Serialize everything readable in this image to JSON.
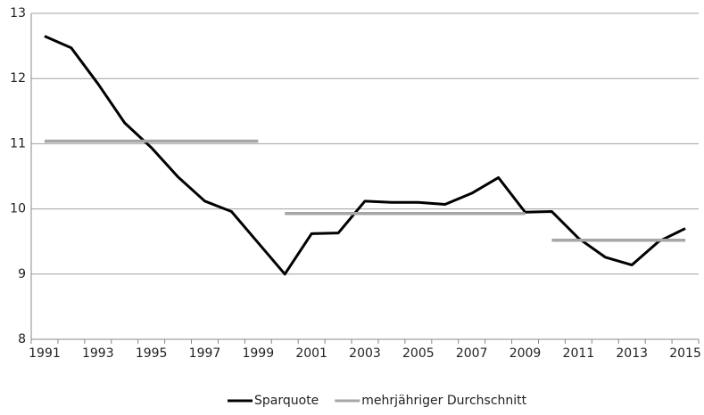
{
  "chart_data": {
    "type": "line",
    "categories": [
      "1991",
      null,
      "1993",
      null,
      "1995",
      null,
      "1997",
      null,
      "1999",
      null,
      "2001",
      null,
      "2003",
      null,
      "2005",
      null,
      "2007",
      null,
      "2009",
      null,
      "2011",
      null,
      "2013",
      null,
      "2015"
    ],
    "series": [
      {
        "name": "Sparquote",
        "color": "#000000",
        "values": [
          12.65,
          12.47,
          11.92,
          11.32,
          10.94,
          10.49,
          10.12,
          9.96,
          9.48,
          9.0,
          9.62,
          9.63,
          10.12,
          10.1,
          10.1,
          10.07,
          10.24,
          10.48,
          9.95,
          9.96,
          9.55,
          9.26,
          9.14,
          9.5,
          9.7
        ]
      },
      {
        "name": "mehrjähriger Durchschnitt",
        "color": "#a6a6a6",
        "values": [
          11.04,
          11.04,
          11.04,
          11.04,
          11.04,
          11.04,
          11.04,
          11.04,
          11.04,
          9.93,
          9.93,
          9.93,
          9.93,
          9.93,
          9.93,
          9.93,
          9.93,
          9.93,
          9.93,
          9.52,
          9.52,
          9.52,
          9.52,
          9.52,
          9.52
        ]
      }
    ],
    "ylim": [
      8,
      13
    ],
    "yticks": [
      8,
      9,
      10,
      11,
      12,
      13
    ],
    "grid": true,
    "legend": "bottom"
  }
}
